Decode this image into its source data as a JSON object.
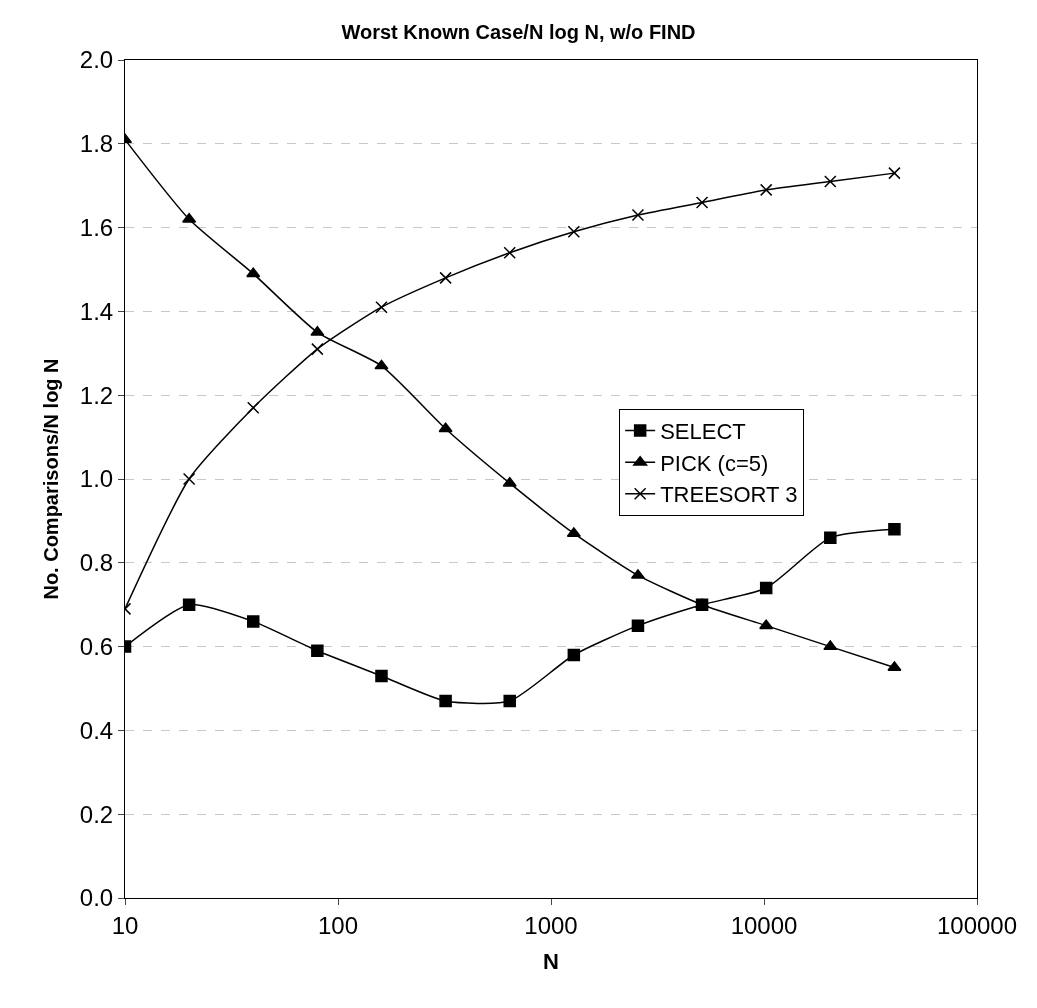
{
  "chart_data": {
    "type": "line",
    "title": "Worst Known Case/N log N, w/o FIND",
    "xlabel": "N",
    "ylabel": "No. Comparisons/N log N",
    "x": [
      10,
      20,
      40,
      80,
      160,
      320,
      640,
      1280,
      2560,
      5120,
      10240,
      20480,
      40960
    ],
    "series": [
      {
        "name": "SELECT",
        "color": "#000000",
        "marker": "square",
        "values": [
          0.6,
          0.7,
          0.66,
          0.59,
          0.53,
          0.47,
          0.47,
          0.58,
          0.65,
          0.7,
          0.74,
          0.86,
          0.88
        ]
      },
      {
        "name": "PICK (c=5)",
        "color": "#000000",
        "marker": "triangle",
        "values": [
          1.81,
          1.62,
          1.49,
          1.35,
          1.27,
          1.12,
          0.99,
          0.87,
          0.77,
          0.7,
          0.65,
          0.6,
          0.55
        ]
      },
      {
        "name": "TREESORT 3",
        "color": "#000000",
        "marker": "cross",
        "values": [
          0.69,
          1.0,
          1.17,
          1.31,
          1.41,
          1.48,
          1.54,
          1.59,
          1.63,
          1.66,
          1.69,
          1.71,
          1.73
        ]
      }
    ],
    "log": "x",
    "xlim": [
      10,
      100000
    ],
    "xticks": [
      10,
      100,
      1000,
      10000,
      100000
    ],
    "ylim": [
      0,
      2
    ],
    "yticks": [
      {
        "value": 0,
        "label": "0.0"
      },
      0.2,
      0.4,
      0.6,
      0.8,
      {
        "value": 1,
        "label": "1.0"
      },
      1.2,
      1.4,
      1.6,
      1.8,
      {
        "value": 2,
        "label": "2.0"
      }
    ],
    "grid": "y",
    "legend": "right",
    "line_style": "solid"
  }
}
